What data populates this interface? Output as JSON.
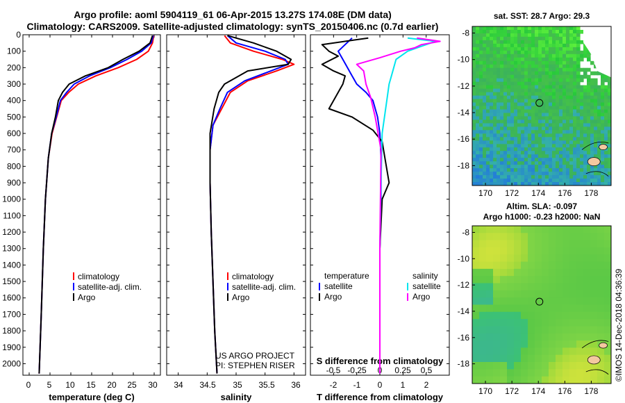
{
  "header": {
    "line1": "Argo profile: aoml 5904119_61 06-Apr-2015 13.27S 174.08E (DM data)",
    "line2": "Climatology: CARS2009. Satellite-adjusted climatology: synTS_20150406.nc (0.7d earlier)"
  },
  "colors": {
    "climatology": "#ff0000",
    "satellite": "#0000ff",
    "argo": "#000000",
    "sat_salinity": "#00e5ee",
    "argo_salinity": "#ff00ff"
  },
  "chart_data": [
    {
      "type": "line",
      "title": "",
      "xlabel": "temperature (deg C)",
      "ylabel": "",
      "xlim": [
        -1.5,
        31.5
      ],
      "ylim": [
        2070,
        0
      ],
      "xticks": [
        "0",
        "5",
        "10",
        "15",
        "20",
        "25",
        "30"
      ],
      "xtick_values": [
        0,
        5,
        10,
        15,
        20,
        25,
        30
      ],
      "yticks": [
        "0",
        "100",
        "200",
        "300",
        "400",
        "500",
        "600",
        "700",
        "800",
        "900",
        "1000",
        "1100",
        "1200",
        "1300",
        "1400",
        "1500",
        "1600",
        "1700",
        "1800",
        "1900",
        "2000"
      ],
      "ytick_values": [
        0,
        100,
        200,
        300,
        400,
        500,
        600,
        700,
        800,
        900,
        1000,
        1100,
        1200,
        1300,
        1400,
        1500,
        1600,
        1700,
        1800,
        1900,
        2000
      ],
      "legend": [
        "climatology",
        "satellite-adj. clim.",
        "Argo"
      ],
      "legend_position": "lower-right",
      "series": [
        {
          "name": "climatology",
          "color": "#ff0000",
          "x": [
            29.9,
            29.6,
            28.6,
            25.8,
            21.4,
            16.0,
            11.8,
            9.5,
            7.7,
            6.6,
            5.5,
            4.6,
            3.9,
            3.4,
            2.9,
            2.4
          ],
          "y": [
            5,
            50,
            100,
            150,
            200,
            250,
            300,
            350,
            400,
            500,
            600,
            750,
            1000,
            1300,
            1700,
            2060
          ]
        },
        {
          "name": "satellite-adj. clim.",
          "color": "#0000ff",
          "x": [
            29.8,
            29.3,
            27.0,
            23.5,
            19.5,
            14.5,
            10.8,
            9.0,
            7.5,
            6.5,
            5.4,
            4.6,
            3.9,
            3.4,
            2.9,
            2.4
          ],
          "y": [
            5,
            50,
            100,
            150,
            200,
            250,
            300,
            350,
            400,
            500,
            600,
            750,
            1000,
            1300,
            1700,
            2060
          ]
        },
        {
          "name": "Argo",
          "color": "#000000",
          "x": [
            29.6,
            29.0,
            26.4,
            22.5,
            19.0,
            13.5,
            9.6,
            8.0,
            7.0,
            6.3,
            5.4,
            4.6,
            3.9,
            3.4,
            2.9,
            2.4
          ],
          "y": [
            5,
            50,
            100,
            150,
            200,
            250,
            300,
            350,
            400,
            500,
            600,
            750,
            1000,
            1300,
            1700,
            2060
          ]
        }
      ]
    },
    {
      "type": "line",
      "title": "",
      "xlabel": "salinity",
      "ylabel": "",
      "xlim": [
        33.8,
        36.2
      ],
      "ylim": [
        2070,
        0
      ],
      "xticks": [
        "34",
        "34.5",
        "35",
        "35.5",
        "36"
      ],
      "xtick_values": [
        34,
        34.5,
        35,
        35.5,
        36
      ],
      "legend": [
        "climatology",
        "satellite-adj. clim.",
        "Argo"
      ],
      "legend_position": "lower-right",
      "annotations": [
        "US ARGO PROJECT",
        "PI: STEPHEN RISER"
      ],
      "series": [
        {
          "name": "climatology",
          "color": "#ff0000",
          "x": [
            34.8,
            34.9,
            35.3,
            35.8,
            36.0,
            35.7,
            35.2,
            34.9,
            34.75,
            34.6,
            34.55,
            34.55,
            34.57,
            34.6,
            34.63,
            34.67
          ],
          "y": [
            5,
            50,
            100,
            150,
            180,
            220,
            280,
            350,
            450,
            550,
            700,
            900,
            1200,
            1500,
            1800,
            2060
          ]
        },
        {
          "name": "satellite-adj. clim.",
          "color": "#0000ff",
          "x": [
            34.85,
            35.0,
            35.5,
            35.85,
            35.9,
            35.6,
            35.15,
            34.85,
            34.72,
            34.6,
            34.55,
            34.55,
            34.57,
            34.6,
            34.63,
            34.67
          ],
          "y": [
            5,
            50,
            100,
            150,
            180,
            220,
            280,
            350,
            450,
            550,
            700,
            900,
            1200,
            1500,
            1800,
            2060
          ]
        },
        {
          "name": "Argo",
          "color": "#000000",
          "x": [
            34.85,
            35.3,
            35.7,
            35.95,
            35.9,
            35.2,
            34.8,
            34.7,
            34.62,
            34.55,
            34.55,
            34.57,
            34.6,
            34.63,
            34.67
          ],
          "y": [
            5,
            50,
            100,
            150,
            180,
            220,
            300,
            350,
            450,
            600,
            900,
            1200,
            1500,
            1800,
            2060
          ]
        }
      ]
    },
    {
      "type": "line",
      "title": "",
      "xlabel": "T difference from climatology",
      "ylabel": "",
      "x2label": "S difference from climatology",
      "xlim": [
        -3,
        3
      ],
      "ylim": [
        2070,
        0
      ],
      "xticks": [
        "-2",
        "-1",
        "0",
        "1",
        "2"
      ],
      "xtick_values": [
        -2,
        -1,
        0,
        1,
        2
      ],
      "x2ticks": [
        "-0.5",
        "-0.25",
        "0",
        "0.25",
        "0.5"
      ],
      "x2tick_values": [
        -0.5,
        -0.25,
        0,
        0.25,
        0.5
      ],
      "legend_left_header": "temperature",
      "legend_right_header": "salinity",
      "legend": [
        "satellite",
        "Argo",
        "satellite",
        "Argo"
      ],
      "legend_position": "lower",
      "series": [
        {
          "name": "T satellite",
          "color": "#0000ff",
          "x": [
            -1.2,
            -1.5,
            -1.8,
            -1.6,
            -1.4,
            -1.2,
            -1.0,
            -0.6,
            -0.3,
            -0.1,
            0,
            0.05,
            0.05,
            0,
            0,
            0
          ],
          "y": [
            20,
            60,
            100,
            150,
            200,
            250,
            300,
            350,
            400,
            500,
            600,
            750,
            1000,
            1300,
            1700,
            2060
          ]
        },
        {
          "name": "T Argo",
          "color": "#000000",
          "x": [
            -0.5,
            -2.5,
            -2.2,
            -1.8,
            -2.5,
            -2.0,
            -1.5,
            -1.6,
            -2.2,
            -1.2,
            -0.3,
            0.1,
            0.4,
            0.1,
            0,
            0,
            0
          ],
          "y": [
            20,
            60,
            100,
            130,
            180,
            220,
            250,
            300,
            450,
            500,
            580,
            650,
            900,
            1000,
            1300,
            1700,
            2060
          ]
        },
        {
          "name": "S satellite",
          "color": "#00e5ee",
          "x": [
            1.2,
            2.4,
            2.0,
            1.2,
            0.7,
            0.6,
            0.5,
            0.4,
            0.3,
            0.1,
            0.05,
            0,
            0
          ],
          "y": [
            20,
            40,
            60,
            100,
            150,
            200,
            250,
            300,
            400,
            600,
            900,
            1300,
            2060
          ]
        },
        {
          "name": "S Argo",
          "color": "#ff00ff",
          "x": [
            1.6,
            2.6,
            1.8,
            1.5,
            0.9,
            0.0,
            -1.0,
            -0.7,
            -0.6,
            -0.4,
            -0.2,
            0.05,
            0,
            0
          ],
          "y": [
            20,
            40,
            60,
            80,
            100,
            140,
            180,
            220,
            300,
            380,
            500,
            700,
            1300,
            2060
          ]
        }
      ]
    },
    {
      "type": "heatmap",
      "title": "sat. SST: 28.7 Argo: 29.3",
      "xlabel": "",
      "ylabel": "",
      "xlim": [
        169,
        179.5
      ],
      "ylim": [
        -19.5,
        -7.5
      ],
      "xticks": [
        "170",
        "172",
        "174",
        "176",
        "178"
      ],
      "xtick_values": [
        170,
        172,
        174,
        176,
        178
      ],
      "yticks": [
        "-8",
        "-10",
        "-12",
        "-14",
        "-16",
        "-18"
      ],
      "ytick_values": [
        -8,
        -10,
        -12,
        -14,
        -16,
        -18
      ],
      "marker": [
        174.08,
        -13.27
      ]
    },
    {
      "type": "heatmap",
      "title": "Altim. SLA: -0.097",
      "subtitle": "Argo h1000: -0.23 h2000: NaN",
      "xlabel": "",
      "ylabel": "",
      "xlim": [
        169,
        179.5
      ],
      "ylim": [
        -19.5,
        -7.5
      ],
      "xticks": [
        "170",
        "172",
        "174",
        "176",
        "178"
      ],
      "xtick_values": [
        170,
        172,
        174,
        176,
        178
      ],
      "yticks": [
        "-8",
        "-10",
        "-12",
        "-14",
        "-16",
        "-18"
      ],
      "ytick_values": [
        -8,
        -10,
        -12,
        -14,
        -16,
        -18
      ],
      "marker": [
        174.08,
        -13.27
      ]
    }
  ],
  "credit": "©IMOS 14-Dec-2018 04:36:39"
}
